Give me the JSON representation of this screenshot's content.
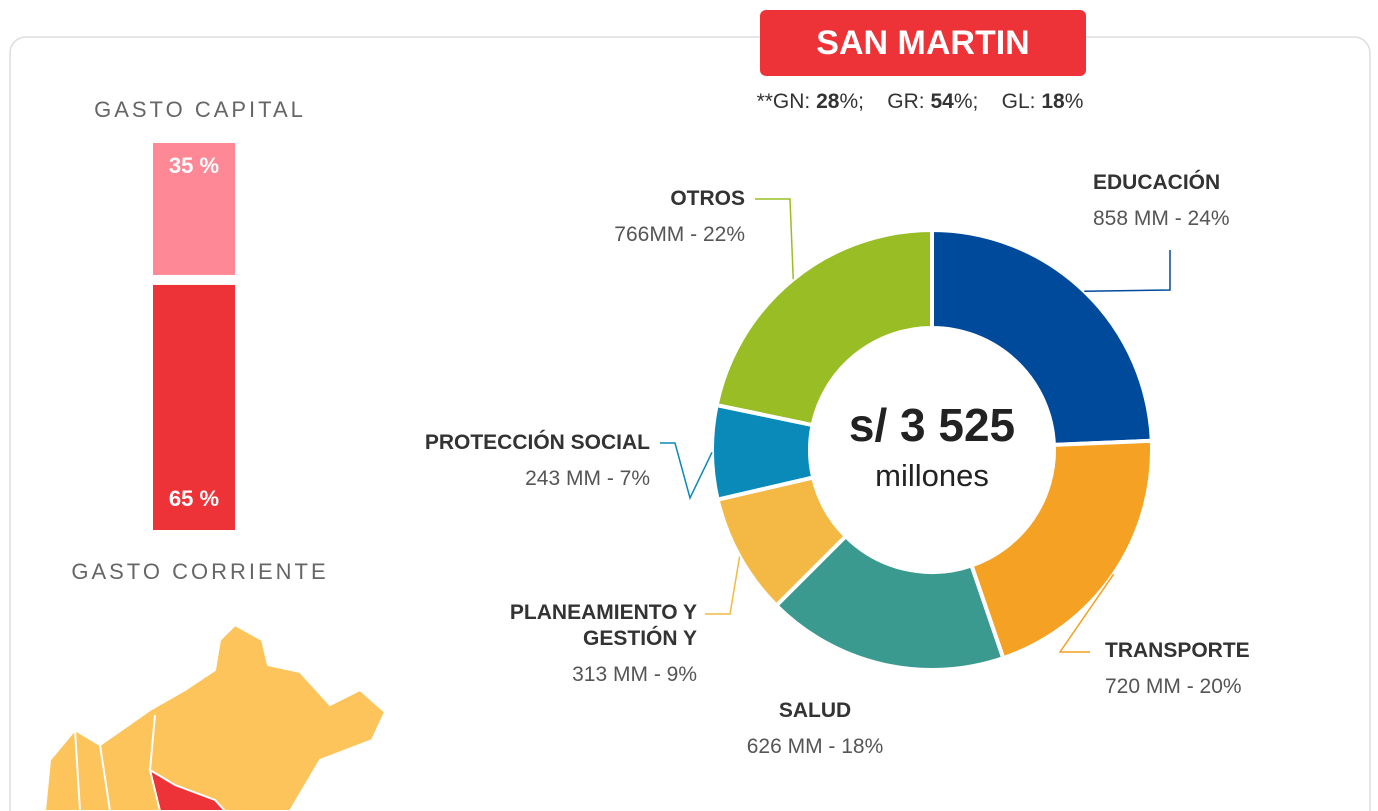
{
  "header": {
    "title": "SAN MARTIN"
  },
  "subtitle": [
    {
      "text": "**GN: "
    },
    {
      "text": "28",
      "bold": true
    },
    {
      "text": "%;    GR: "
    },
    {
      "text": "54",
      "bold": true
    },
    {
      "text": "%;    GL: "
    },
    {
      "text": "18",
      "bold": true
    },
    {
      "text": "%"
    }
  ],
  "chart_data": [
    {
      "type": "donut",
      "center_title": "s/ 3 525",
      "center_subtitle": "millones",
      "categories": [
        "EDUCACIÓN",
        "TRANSPORTE",
        "SALUD",
        "PLANEAMIENTO Y GESTIÓN Y",
        "PROTECCIÓN SOCIAL",
        "OTROS"
      ],
      "values": [
        858,
        720,
        626,
        313,
        243,
        766
      ],
      "value_labels": [
        "858 MM - 24%",
        "720 MM - 20%",
        "626 MM - 18%",
        "313 MM - 9%",
        "243 MM -  7%",
        "766MM - 22%"
      ],
      "colors": [
        "#004a9c",
        "#f4a124",
        "#3a9a8f",
        "#f4b945",
        "#0a8ab8",
        "#99bd24"
      ]
    },
    {
      "type": "stacked_bar",
      "series": [
        {
          "name": "GASTO CAPITAL",
          "values": [
            35
          ],
          "value_labels": [
            "35 %"
          ],
          "color": "#ff8896"
        },
        {
          "name": "GASTO CORRIENTE",
          "values": [
            65
          ],
          "value_labels": [
            "65 %"
          ],
          "color": "#ee3338"
        }
      ]
    }
  ]
}
